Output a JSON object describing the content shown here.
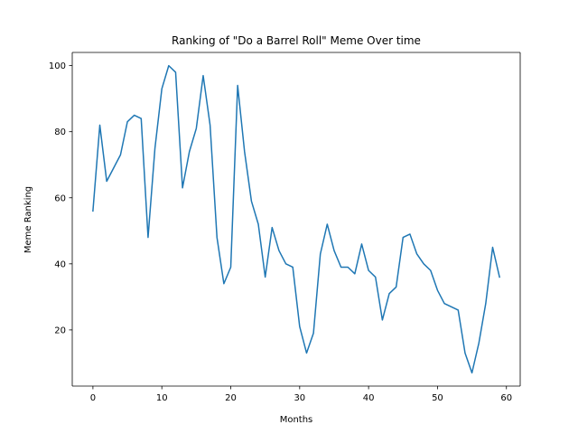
{
  "chart_data": {
    "type": "line",
    "title": "Ranking of \"Do a Barrel Roll\" Meme Over time",
    "xlabel": "Months",
    "ylabel": "Meme Ranking",
    "xlim": [
      -3,
      62
    ],
    "ylim": [
      3,
      104
    ],
    "xticks": [
      0,
      10,
      20,
      30,
      40,
      50,
      60
    ],
    "yticks": [
      20,
      40,
      60,
      80,
      100
    ],
    "grid": false,
    "line_color": "#1f77b4",
    "series": [
      {
        "x": [
          0,
          1,
          2,
          3,
          4,
          5,
          6,
          7,
          8,
          9,
          10,
          11,
          12,
          13,
          14,
          15,
          16,
          17,
          18,
          19,
          20,
          21,
          22,
          23,
          24,
          25,
          26,
          27,
          28,
          29,
          30,
          31,
          32,
          33,
          34,
          35,
          36,
          37,
          38,
          39,
          40,
          41,
          42,
          43,
          44,
          45,
          46,
          47,
          48,
          49,
          50,
          51,
          52,
          53,
          54,
          55,
          56,
          57,
          58,
          59
        ],
        "values": [
          56,
          82,
          65,
          69,
          73,
          83,
          85,
          84,
          48,
          75,
          93,
          100,
          98,
          63,
          74,
          81,
          97,
          82,
          48,
          34,
          39,
          94,
          74,
          59,
          52,
          36,
          51,
          44,
          40,
          39,
          21,
          13,
          19,
          43,
          52,
          44,
          39,
          39,
          37,
          46,
          38,
          36,
          23,
          31,
          33,
          48,
          49,
          43,
          40,
          38,
          32,
          28,
          27,
          26,
          13,
          7,
          16,
          28,
          45,
          36
        ]
      }
    ]
  }
}
